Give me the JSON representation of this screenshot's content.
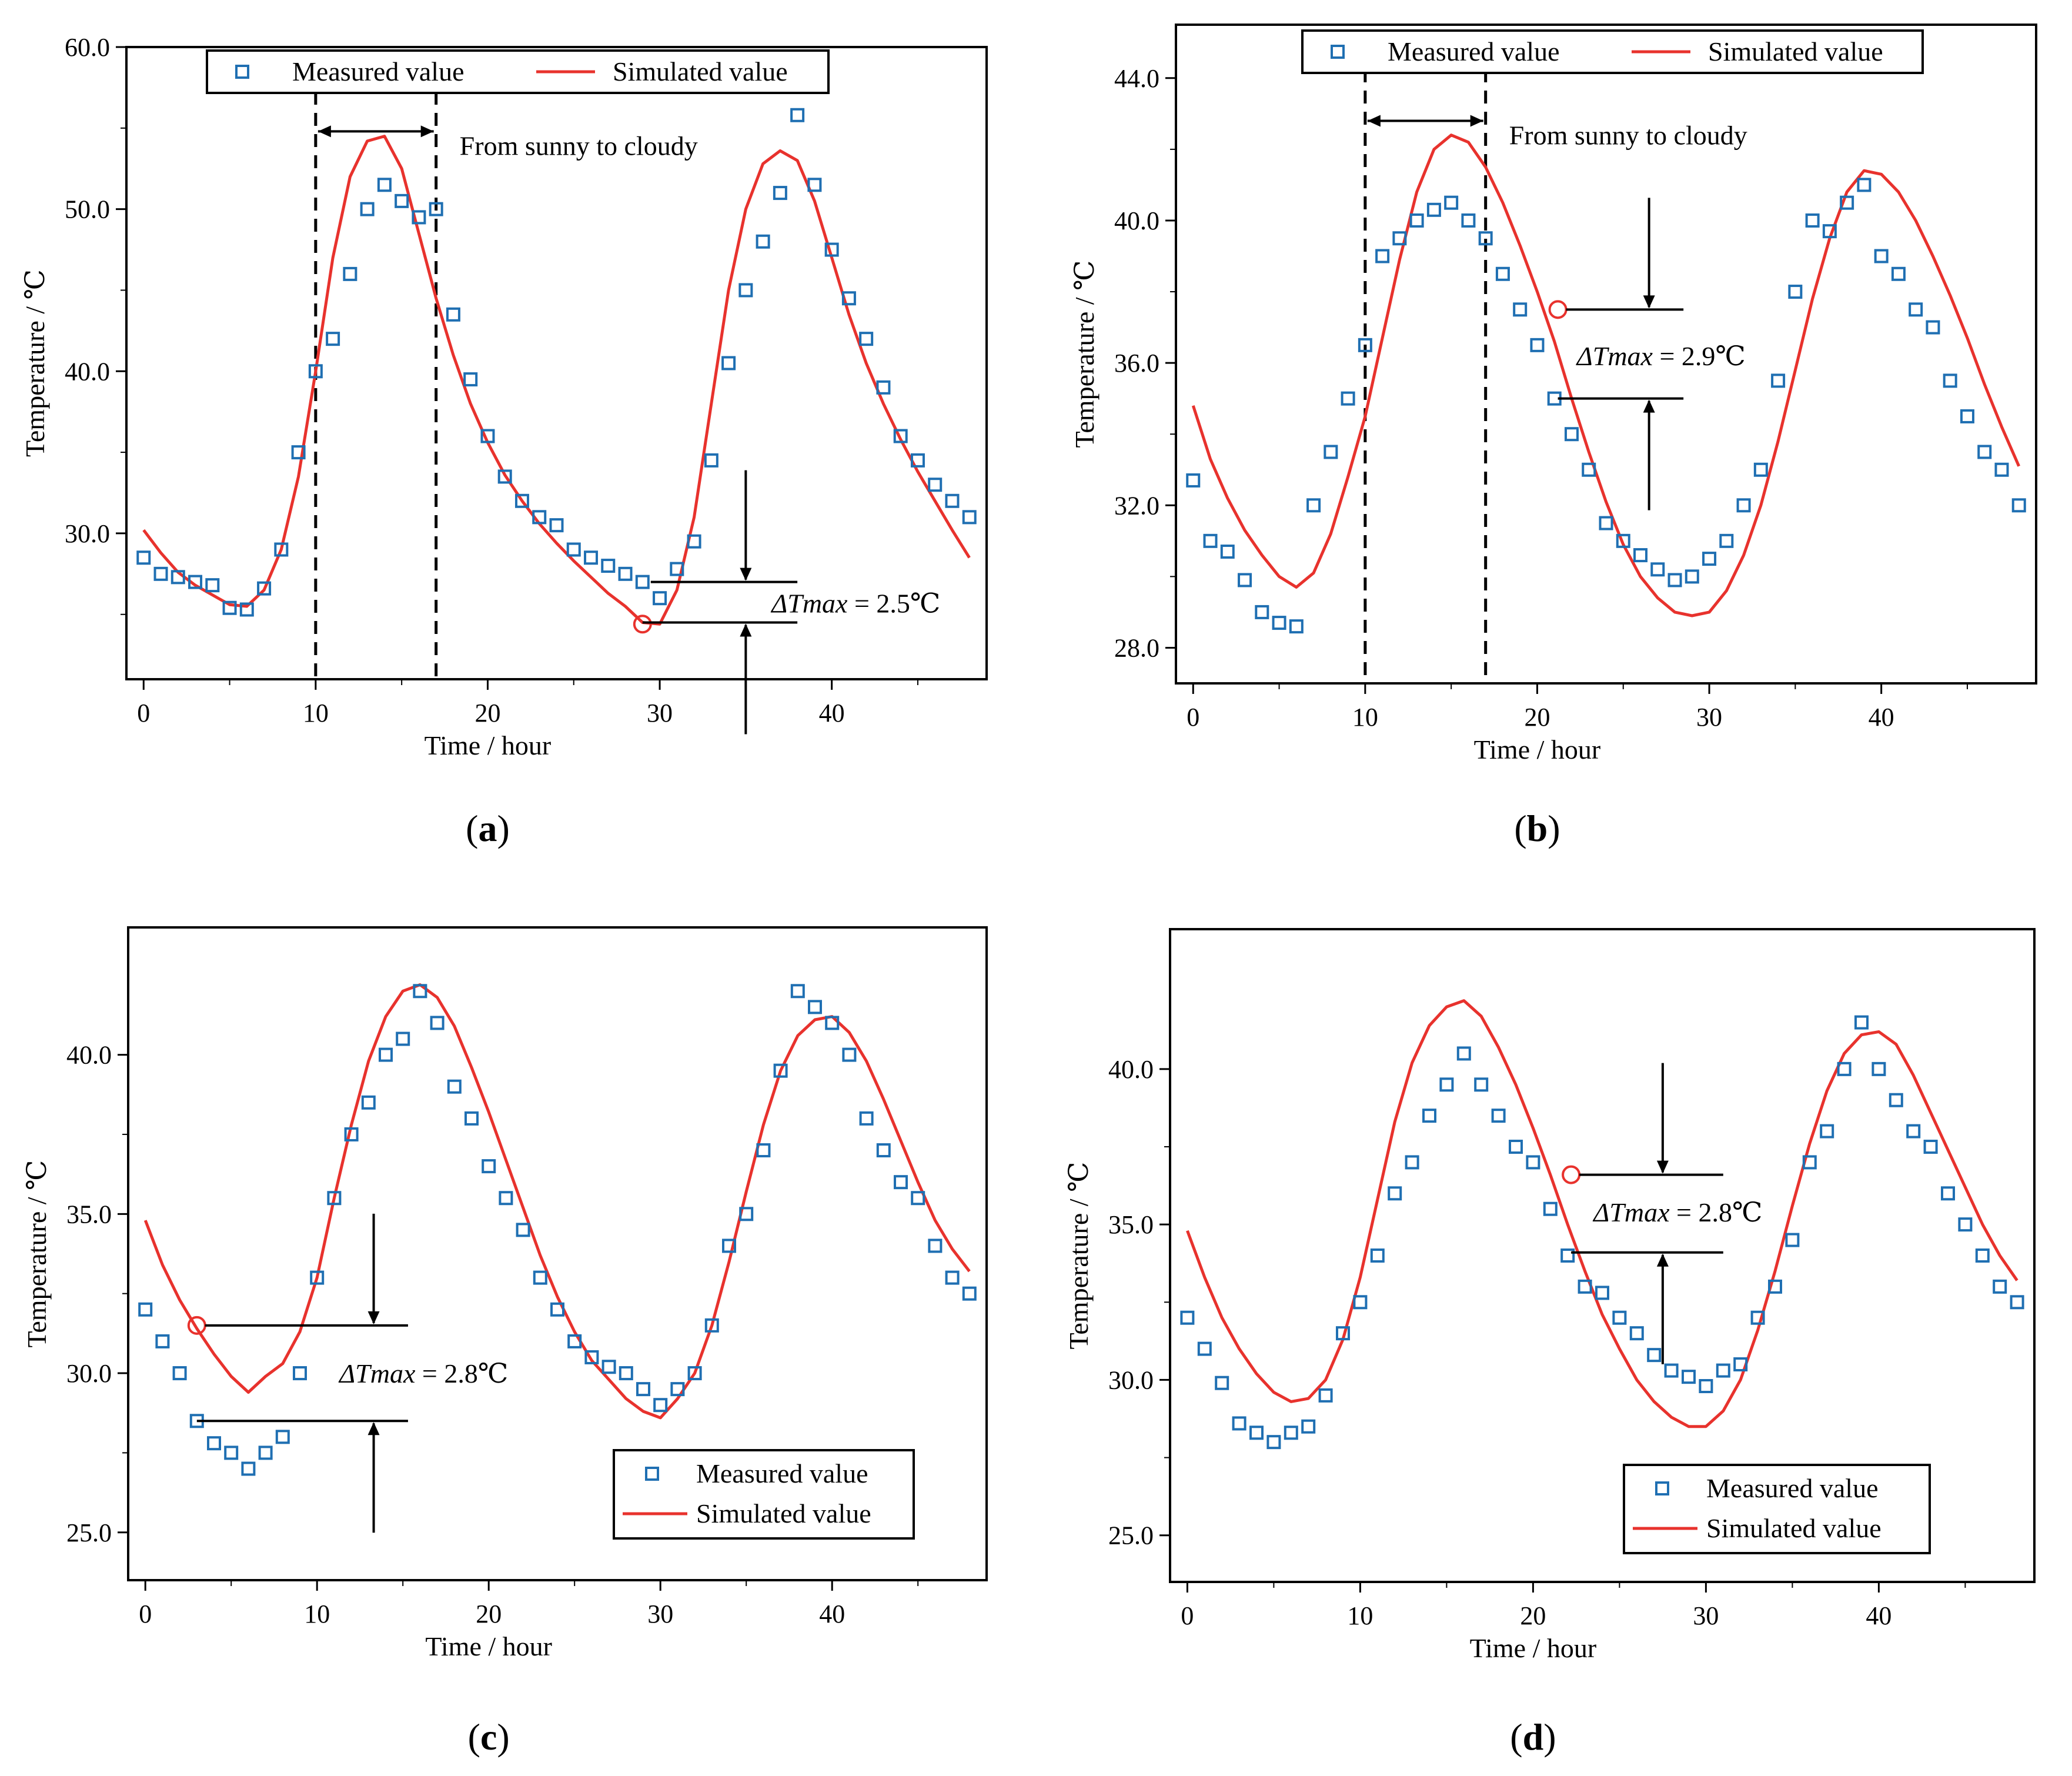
{
  "figure": {
    "colors": {
      "measured": "#1f6fb2",
      "simulated": "#e8322d",
      "axis": "#000000",
      "marker_circle": "#e8322d"
    }
  },
  "chart_data": [
    {
      "panel": "a",
      "panel_label": "(a)",
      "type": "line",
      "xlabel": "Time / hour",
      "ylabel": "Temperature / ℃",
      "xlim": [
        -1,
        49
      ],
      "ylim": [
        21.0,
        60.0
      ],
      "xticks": [
        0,
        10,
        20,
        30,
        40
      ],
      "xtick_labels": [
        "0",
        "10",
        "20",
        "30",
        "40"
      ],
      "yticks": [
        30,
        40,
        50,
        60
      ],
      "ytick_labels": [
        "30.0",
        "40.0",
        "50.0",
        "60.0"
      ],
      "legend": {
        "position": "top-center",
        "entries": [
          "Measured value",
          "Simulated value"
        ]
      },
      "series": [
        {
          "name": "Measured value",
          "kind": "scatter",
          "x": [
            0,
            1,
            2,
            3,
            4,
            5,
            6,
            7,
            8,
            9,
            10,
            11,
            12,
            13,
            14,
            15,
            16,
            17,
            18,
            19,
            20,
            21,
            22,
            23,
            24,
            25,
            26,
            27,
            28,
            29,
            30,
            31,
            32,
            33,
            34,
            35,
            36,
            37,
            38,
            39,
            40,
            41,
            42,
            43,
            44,
            45,
            46,
            47,
            48
          ],
          "y": [
            28.5,
            27.5,
            27.3,
            27.0,
            26.8,
            25.4,
            25.3,
            26.6,
            29.0,
            35.0,
            40.0,
            42.0,
            46.0,
            50.0,
            51.5,
            50.5,
            49.5,
            50.0,
            43.5,
            39.5,
            36.0,
            33.5,
            32.0,
            31.0,
            30.5,
            29.0,
            28.5,
            28.0,
            27.5,
            27.0,
            26.0,
            27.8,
            29.5,
            34.5,
            40.5,
            45.0,
            48.0,
            51.0,
            55.8,
            51.5,
            47.5,
            44.5,
            42.0,
            39.0,
            36.0,
            34.5,
            33.0,
            32.0,
            31.0
          ]
        },
        {
          "name": "Simulated value",
          "kind": "line",
          "x": [
            0,
            1,
            2,
            3,
            4,
            5,
            6,
            7,
            8,
            9,
            10,
            11,
            12,
            13,
            14,
            15,
            16,
            17,
            18,
            19,
            20,
            21,
            22,
            23,
            24,
            25,
            26,
            27,
            28,
            29,
            30,
            31,
            32,
            33,
            34,
            35,
            36,
            37,
            38,
            39,
            40,
            41,
            42,
            43,
            44,
            45,
            46,
            47,
            48
          ],
          "y": [
            30.2,
            28.8,
            27.6,
            26.8,
            26.2,
            25.6,
            25.5,
            26.5,
            29.0,
            33.5,
            40.0,
            47.0,
            52.0,
            54.2,
            54.5,
            52.5,
            48.5,
            44.5,
            41.0,
            38.0,
            35.6,
            33.6,
            32.0,
            30.6,
            29.4,
            28.3,
            27.3,
            26.3,
            25.5,
            24.5,
            24.4,
            26.5,
            31.0,
            38.0,
            45.0,
            50.0,
            52.8,
            53.6,
            53.0,
            50.5,
            47.0,
            43.5,
            40.5,
            38.0,
            35.8,
            33.8,
            32.0,
            30.2,
            28.5
          ]
        }
      ],
      "annotations": {
        "period_label": "From sunny to cloudy",
        "delta_prefix": "ΔTmax",
        "delta_suffix": " = 2.5℃",
        "vlines_x": [
          10,
          17
        ],
        "period_arrow_y": 54.8,
        "delta_circle": {
          "x": 29,
          "y": 24.4
        },
        "delta_lines_y": [
          27.0,
          24.5
        ],
        "delta_lines_x": [
          29,
          38
        ],
        "delta_arrow_x": 35,
        "delta_label_at": {
          "x": 36.5,
          "y": 25.7
        }
      }
    },
    {
      "panel": "b",
      "panel_label": "(b)",
      "type": "line",
      "xlabel": "Time / hour",
      "ylabel": "Temperature / ℃",
      "xlim": [
        -1,
        49
      ],
      "ylim": [
        27.0,
        45.5
      ],
      "xticks": [
        0,
        10,
        20,
        30,
        40
      ],
      "xtick_labels": [
        "0",
        "10",
        "20",
        "30",
        "40"
      ],
      "yticks": [
        28,
        32,
        36,
        40,
        44
      ],
      "ytick_labels": [
        "28.0",
        "32.0",
        "36.0",
        "40.0",
        "44.0"
      ],
      "legend": {
        "position": "top-center",
        "entries": [
          "Measured value",
          "Simulated value"
        ]
      },
      "series": [
        {
          "name": "Measured value",
          "kind": "scatter",
          "x": [
            0,
            1,
            2,
            3,
            4,
            5,
            6,
            7,
            8,
            9,
            10,
            11,
            12,
            13,
            14,
            15,
            16,
            17,
            18,
            19,
            20,
            21,
            22,
            23,
            24,
            25,
            26,
            27,
            28,
            29,
            30,
            31,
            32,
            33,
            34,
            35,
            36,
            37,
            38,
            39,
            40,
            41,
            42,
            43,
            44,
            45,
            46,
            47,
            48
          ],
          "y": [
            32.7,
            31.0,
            30.7,
            29.9,
            29.0,
            28.7,
            28.6,
            32.0,
            33.5,
            35.0,
            36.5,
            39.0,
            39.5,
            40.0,
            40.3,
            40.5,
            40.0,
            39.5,
            38.5,
            37.5,
            36.5,
            35.0,
            34.0,
            33.0,
            31.5,
            31.0,
            30.6,
            30.2,
            29.9,
            30.0,
            30.5,
            31.0,
            32.0,
            33.0,
            35.5,
            38.0,
            40.0,
            39.7,
            40.5,
            41.0,
            39.0,
            38.5,
            37.5,
            37.0,
            35.5,
            34.5,
            33.5,
            33.0,
            32.0
          ]
        },
        {
          "name": "Simulated value",
          "kind": "line",
          "x": [
            0,
            1,
            2,
            3,
            4,
            5,
            6,
            7,
            8,
            9,
            10,
            11,
            12,
            13,
            14,
            15,
            16,
            17,
            18,
            19,
            20,
            21,
            22,
            23,
            24,
            25,
            26,
            27,
            28,
            29,
            30,
            31,
            32,
            33,
            34,
            35,
            36,
            37,
            38,
            39,
            40,
            41,
            42,
            43,
            44,
            45,
            46,
            47,
            48
          ],
          "y": [
            34.8,
            33.3,
            32.2,
            31.3,
            30.6,
            30.0,
            29.7,
            30.1,
            31.2,
            32.8,
            34.5,
            36.7,
            38.9,
            40.8,
            42.0,
            42.4,
            42.2,
            41.5,
            40.5,
            39.3,
            38.0,
            36.6,
            35.0,
            33.5,
            32.1,
            30.9,
            30.0,
            29.4,
            29.0,
            28.9,
            29.0,
            29.6,
            30.6,
            32.0,
            33.8,
            35.8,
            37.8,
            39.5,
            40.8,
            41.4,
            41.3,
            40.8,
            40.0,
            39.0,
            37.9,
            36.7,
            35.4,
            34.2,
            33.1
          ]
        }
      ],
      "annotations": {
        "period_label": "From sunny to cloudy",
        "delta_prefix": "ΔTmax",
        "delta_suffix": " = 2.9℃",
        "vlines_x": [
          10,
          17
        ],
        "period_arrow_y": 42.8,
        "delta_circle": {
          "x": 21.2,
          "y": 37.5
        },
        "delta_lines_y": [
          37.5,
          35.0
        ],
        "delta_lines_x": [
          21.2,
          28.5
        ],
        "delta_arrow_x": 26.5,
        "delta_label_at": {
          "x": 22.3,
          "y": 36.2
        }
      }
    },
    {
      "panel": "c",
      "panel_label": "(c)",
      "type": "line",
      "xlabel": "Time / hour",
      "ylabel": "Temperature / ℃",
      "xlim": [
        -1,
        49
      ],
      "ylim": [
        23.5,
        44.0
      ],
      "xticks": [
        0,
        10,
        20,
        30,
        40
      ],
      "xtick_labels": [
        "0",
        "10",
        "20",
        "30",
        "40"
      ],
      "yticks": [
        25,
        30,
        35,
        40
      ],
      "ytick_labels": [
        "25.0",
        "30.0",
        "35.0",
        "40.0"
      ],
      "legend": {
        "position": "bottom-right",
        "entries": [
          "Measured value",
          "Simulated value"
        ]
      },
      "series": [
        {
          "name": "Measured value",
          "kind": "scatter",
          "x": [
            0,
            1,
            2,
            3,
            4,
            5,
            6,
            7,
            8,
            9,
            10,
            11,
            12,
            13,
            14,
            15,
            16,
            17,
            18,
            19,
            20,
            21,
            22,
            23,
            24,
            25,
            26,
            27,
            28,
            29,
            30,
            31,
            32,
            33,
            34,
            35,
            36,
            37,
            38,
            39,
            40,
            41,
            42,
            43,
            44,
            45,
            46,
            47,
            48
          ],
          "y": [
            32.0,
            31.0,
            30.0,
            28.5,
            27.8,
            27.5,
            27.0,
            27.5,
            28.0,
            30.0,
            33.0,
            35.5,
            37.5,
            38.5,
            40.0,
            40.5,
            42.0,
            41.0,
            39.0,
            38.0,
            36.5,
            35.5,
            34.5,
            33.0,
            32.0,
            31.0,
            30.5,
            30.2,
            30.0,
            29.5,
            29.0,
            29.5,
            30.0,
            31.5,
            34.0,
            35.0,
            37.0,
            39.5,
            42.0,
            41.5,
            41.0,
            40.0,
            38.0,
            37.0,
            36.0,
            35.5,
            34.0,
            33.0,
            32.5
          ]
        },
        {
          "name": "Simulated value",
          "kind": "line",
          "x": [
            0,
            1,
            2,
            3,
            4,
            5,
            6,
            7,
            8,
            9,
            10,
            11,
            12,
            13,
            14,
            15,
            16,
            17,
            18,
            19,
            20,
            21,
            22,
            23,
            24,
            25,
            26,
            27,
            28,
            29,
            30,
            31,
            32,
            33,
            34,
            35,
            36,
            37,
            38,
            39,
            40,
            41,
            42,
            43,
            44,
            45,
            46,
            47,
            48
          ],
          "y": [
            34.8,
            33.4,
            32.3,
            31.4,
            30.6,
            29.9,
            29.4,
            29.9,
            30.3,
            31.3,
            33.0,
            35.5,
            37.8,
            39.8,
            41.2,
            42.0,
            42.2,
            41.8,
            40.9,
            39.6,
            38.2,
            36.7,
            35.2,
            33.7,
            32.4,
            31.3,
            30.4,
            29.8,
            29.2,
            28.8,
            28.6,
            29.2,
            30.0,
            31.5,
            33.5,
            35.7,
            37.8,
            39.5,
            40.6,
            41.1,
            41.2,
            40.7,
            39.8,
            38.6,
            37.3,
            36.0,
            34.8,
            33.9,
            33.2
          ]
        }
      ],
      "annotations": {
        "delta_prefix": "ΔTmax",
        "delta_suffix": " = 2.8℃",
        "delta_circle": {
          "x": 3,
          "y": 31.5
        },
        "delta_lines_y": [
          31.5,
          28.5
        ],
        "delta_lines_x": [
          3,
          15.3
        ],
        "delta_arrow_x": 13.3,
        "delta_label_at": {
          "x": 11.3,
          "y": 30.0
        }
      }
    },
    {
      "panel": "d",
      "panel_label": "(d)",
      "type": "line",
      "xlabel": "Time / hour",
      "ylabel": "Temperature / ℃",
      "xlim": [
        -1,
        49
      ],
      "ylim": [
        23.5,
        44.5
      ],
      "xticks": [
        0,
        10,
        20,
        30,
        40
      ],
      "xtick_labels": [
        "0",
        "10",
        "20",
        "30",
        "40"
      ],
      "yticks": [
        25,
        30,
        35,
        40
      ],
      "ytick_labels": [
        "25.0",
        "30.0",
        "35.0",
        "40.0"
      ],
      "legend": {
        "position": "bottom-right",
        "entries": [
          "Measured value",
          "Simulated value"
        ]
      },
      "series": [
        {
          "name": "Measured value",
          "kind": "scatter",
          "x": [
            0,
            1,
            2,
            3,
            4,
            5,
            6,
            7,
            8,
            9,
            10,
            11,
            12,
            13,
            14,
            15,
            16,
            17,
            18,
            19,
            20,
            21,
            22,
            23,
            24,
            25,
            26,
            27,
            28,
            29,
            30,
            31,
            32,
            33,
            34,
            35,
            36,
            37,
            38,
            39,
            40,
            41,
            42,
            43,
            44,
            45,
            46,
            47,
            48
          ],
          "y": [
            32.0,
            31.0,
            29.9,
            28.6,
            28.3,
            28.0,
            28.3,
            28.5,
            29.5,
            31.5,
            32.5,
            34.0,
            36.0,
            37.0,
            38.5,
            39.5,
            40.5,
            39.5,
            38.5,
            37.5,
            37.0,
            35.5,
            34.0,
            33.0,
            32.8,
            32.0,
            31.5,
            30.8,
            30.3,
            30.1,
            29.8,
            30.3,
            30.5,
            32.0,
            33.0,
            34.5,
            37.0,
            38.0,
            40.0,
            41.5,
            40.0,
            39.0,
            38.0,
            37.5,
            36.0,
            35.0,
            34.0,
            33.0,
            32.5
          ]
        },
        {
          "name": "Simulated value",
          "kind": "line",
          "x": [
            0,
            1,
            2,
            3,
            4,
            5,
            6,
            7,
            8,
            9,
            10,
            11,
            12,
            13,
            14,
            15,
            16,
            17,
            18,
            19,
            20,
            21,
            22,
            23,
            24,
            25,
            26,
            27,
            28,
            29,
            30,
            31,
            32,
            33,
            34,
            35,
            36,
            37,
            38,
            39,
            40,
            41,
            42,
            43,
            44,
            45,
            46,
            47,
            48
          ],
          "y": [
            34.8,
            33.3,
            32.0,
            31.0,
            30.2,
            29.6,
            29.3,
            29.4,
            30.0,
            31.3,
            33.3,
            35.8,
            38.3,
            40.2,
            41.4,
            42.0,
            42.2,
            41.7,
            40.7,
            39.5,
            38.1,
            36.6,
            35.0,
            33.5,
            32.1,
            31.0,
            30.0,
            29.3,
            28.8,
            28.5,
            28.5,
            29.0,
            30.0,
            31.6,
            33.5,
            35.6,
            37.6,
            39.3,
            40.5,
            41.1,
            41.2,
            40.8,
            39.8,
            38.6,
            37.4,
            36.2,
            35.0,
            34.0,
            33.2
          ]
        }
      ],
      "annotations": {
        "delta_prefix": "ΔTmax",
        "delta_suffix": " = 2.8℃",
        "delta_circle": {
          "x": 22.2,
          "y": 36.6
        },
        "delta_lines_y": [
          36.6,
          34.1
        ],
        "delta_lines_x": [
          22.2,
          31.0
        ],
        "delta_arrow_x": 27.5,
        "delta_label_at": {
          "x": 23.5,
          "y": 35.4
        }
      }
    }
  ]
}
